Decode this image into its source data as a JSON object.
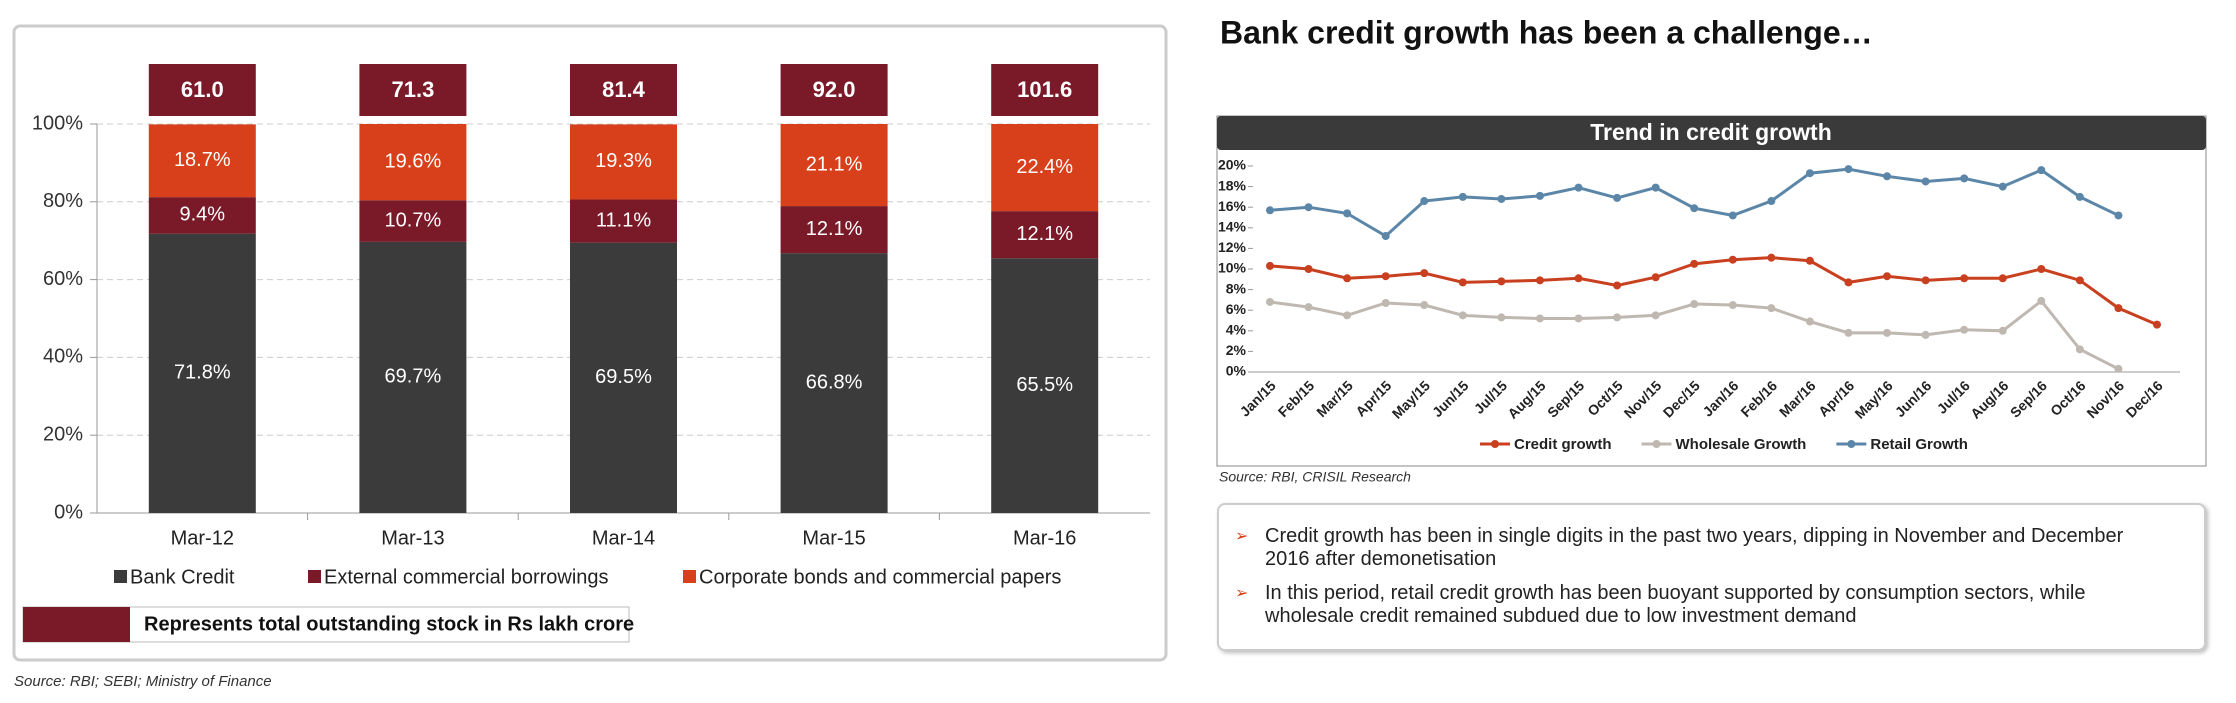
{
  "title": "Bank credit growth has been a challenge…",
  "bullets": [
    "Credit growth has been in single digits in the past two years, dipping in November and December 2016 after demonetisation",
    "In this period, retail credit growth has been buoyant supported by consumption sectors, while wholesale credit remained subdued due to low investment demand"
  ],
  "chart_data": [
    {
      "type": "stacked_bar",
      "categories": [
        "Mar-12",
        "Mar-13",
        "Mar-14",
        "Mar-15",
        "Mar-16"
      ],
      "series": [
        {
          "name": "Bank Credit",
          "color": "#3b3b3b",
          "values": [
            71.8,
            69.7,
            69.5,
            66.8,
            65.5
          ],
          "value_labels": [
            "71.8%",
            "69.7%",
            "69.5%",
            "66.8%",
            "65.5%"
          ]
        },
        {
          "name": "External commercial borrowings",
          "color": "#7a1a28",
          "values": [
            9.4,
            10.7,
            11.1,
            12.1,
            12.1
          ],
          "value_labels": [
            "9.4%",
            "10.7%",
            "11.1%",
            "12.1%",
            "12.1%"
          ]
        },
        {
          "name": "Corporate bonds and commercial papers",
          "color": "#d8401b",
          "values": [
            18.7,
            19.6,
            19.3,
            21.1,
            22.4
          ],
          "value_labels": [
            "18.7%",
            "19.6%",
            "19.3%",
            "21.1%",
            "22.4%"
          ]
        }
      ],
      "totals": {
        "name": "Represents total outstanding stock in Rs lakh crore",
        "color": "#7a1a28",
        "values": [
          61.0,
          71.3,
          81.4,
          92.0,
          101.6
        ],
        "value_labels": [
          "61.0",
          "71.3",
          "81.4",
          "92.0",
          "101.6"
        ]
      },
      "ylim": [
        0,
        100
      ],
      "yticks": [
        {
          "value": 0,
          "label": "0%"
        },
        {
          "value": 20,
          "label": "20%"
        },
        {
          "value": 40,
          "label": "40%"
        },
        {
          "value": 60,
          "label": "60%"
        },
        {
          "value": 80,
          "label": "80%"
        },
        {
          "value": 100,
          "label": "100%"
        }
      ],
      "grid": true,
      "source": "Source: RBI; SEBI; Ministry of Finance"
    },
    {
      "type": "line",
      "title": "Trend in credit growth",
      "categories": [
        "Jan/15",
        "Feb/15",
        "Mar/15",
        "Apr/15",
        "May/15",
        "Jun/15",
        "Jul/15",
        "Aug/15",
        "Sep/15",
        "Oct/15",
        "Nov/15",
        "Dec/15",
        "Jan/16",
        "Feb/16",
        "Mar/16",
        "Apr/16",
        "May/16",
        "Jun/16",
        "Jul/16",
        "Aug/16",
        "Sep/16",
        "Oct/16",
        "Nov/16",
        "Dec/16"
      ],
      "series": [
        {
          "name": "Credit growth",
          "color": "#c8401f",
          "values": [
            10.3,
            10.0,
            9.1,
            9.3,
            9.6,
            8.7,
            8.8,
            8.9,
            9.1,
            8.4,
            9.2,
            10.5,
            10.9,
            11.1,
            10.8,
            8.7,
            9.3,
            8.9,
            9.1,
            9.1,
            10.0,
            8.9,
            6.2,
            4.6
          ]
        },
        {
          "name": "Wholesale Growth",
          "color": "#bfb8b0",
          "values": [
            6.8,
            6.3,
            5.5,
            6.7,
            6.5,
            5.5,
            5.3,
            5.2,
            5.2,
            5.3,
            5.5,
            6.6,
            6.5,
            6.2,
            4.9,
            3.8,
            3.8,
            3.6,
            4.1,
            4.0,
            6.9,
            2.2,
            0.3,
            null
          ]
        },
        {
          "name": "Retail Growth",
          "color": "#5b86a8",
          "values": [
            15.7,
            16.0,
            15.4,
            13.2,
            16.6,
            17.0,
            16.8,
            17.1,
            17.9,
            16.9,
            17.9,
            15.9,
            15.2,
            16.6,
            19.3,
            19.7,
            19.0,
            18.5,
            18.8,
            18.0,
            19.6,
            17.0,
            15.2,
            null
          ]
        }
      ],
      "ylim": [
        0,
        20
      ],
      "yticks": [
        {
          "value": 0,
          "label": "0%"
        },
        {
          "value": 2,
          "label": "2%"
        },
        {
          "value": 4,
          "label": "4%"
        },
        {
          "value": 6,
          "label": "6%"
        },
        {
          "value": 8,
          "label": "8%"
        },
        {
          "value": 10,
          "label": "10%"
        },
        {
          "value": 12,
          "label": "12%"
        },
        {
          "value": 14,
          "label": "14%"
        },
        {
          "value": 16,
          "label": "16%"
        },
        {
          "value": 18,
          "label": "18%"
        },
        {
          "value": 20,
          "label": "20%"
        }
      ],
      "grid": false,
      "source": "Source: RBI, CRISIL Research"
    }
  ]
}
